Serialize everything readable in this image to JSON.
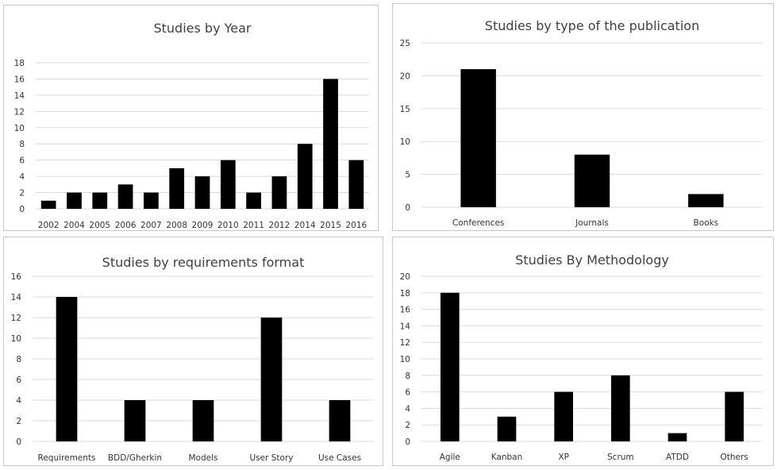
{
  "charts": [
    {
      "id": "year",
      "chart_data": {
        "type": "bar",
        "title": "Studies by Year",
        "categories": [
          "2002",
          "2004",
          "2005",
          "2006",
          "2007",
          "2008",
          "2009",
          "2010",
          "2011",
          "2012",
          "2014",
          "2015",
          "2016"
        ],
        "values": [
          1,
          2,
          2,
          3,
          2,
          5,
          4,
          6,
          2,
          4,
          8,
          16,
          6
        ],
        "ylim": [
          0,
          18
        ],
        "yticks": [
          "0",
          "2",
          "4",
          "6",
          "8",
          "10",
          "12",
          "14",
          "16",
          "18"
        ],
        "grid": true,
        "bar_color": "#000000"
      }
    },
    {
      "id": "publication",
      "chart_data": {
        "type": "bar",
        "title": "Studies by type of the publication",
        "categories": [
          "Conferences",
          "Journals",
          "Books"
        ],
        "values": [
          21,
          8,
          2
        ],
        "ylim": [
          0,
          25
        ],
        "yticks": [
          "0",
          "5",
          "10",
          "15",
          "20",
          "25"
        ],
        "grid": true,
        "bar_color": "#000000"
      }
    },
    {
      "id": "requirements",
      "chart_data": {
        "type": "bar",
        "title": "Studies by requirements format",
        "categories": [
          "Requirements",
          "BDD/Gherkin",
          "Models",
          "User Story",
          "Use Cases"
        ],
        "values": [
          14,
          4,
          4,
          12,
          4
        ],
        "ylim": [
          0,
          16
        ],
        "yticks": [
          "0",
          "2",
          "4",
          "6",
          "8",
          "10",
          "12",
          "14",
          "16"
        ],
        "grid": true,
        "bar_color": "#000000"
      }
    },
    {
      "id": "methodology",
      "chart_data": {
        "type": "bar",
        "title": "Studies By Methodology",
        "categories": [
          "Agile",
          "Kanban",
          "XP",
          "Scrum",
          "ATDD",
          "Others"
        ],
        "values": [
          18,
          3,
          6,
          8,
          1,
          6
        ],
        "ylim": [
          0,
          20
        ],
        "yticks": [
          "0",
          "2",
          "4",
          "6",
          "8",
          "10",
          "12",
          "14",
          "16",
          "18",
          "20"
        ],
        "grid": true,
        "bar_color": "#000000"
      }
    }
  ]
}
